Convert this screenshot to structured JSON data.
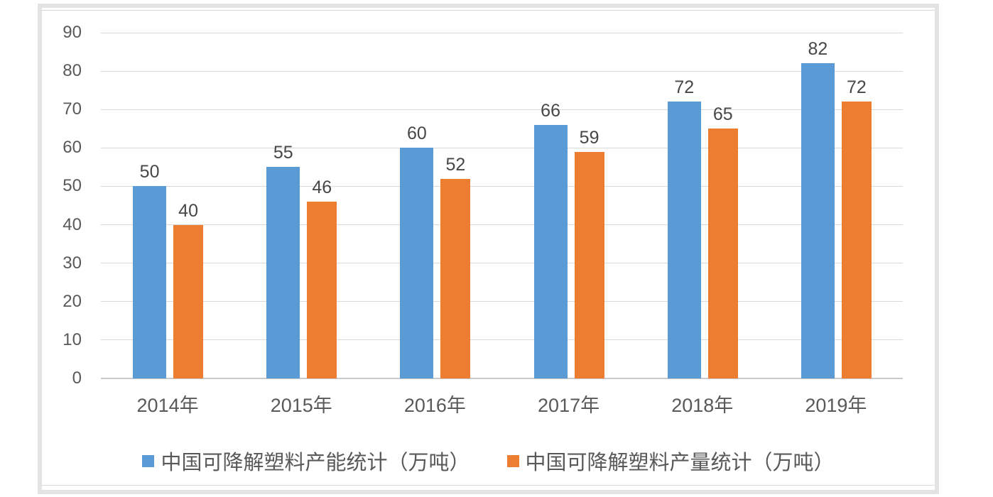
{
  "window": {
    "background": "#FFFFFF"
  },
  "chart_data": {
    "type": "bar",
    "title": "",
    "xlabel": "",
    "ylabel": "",
    "categories": [
      "2014年",
      "2015年",
      "2016年",
      "2017年",
      "2018年",
      "2019年"
    ],
    "series": [
      {
        "name": "中国可降解塑料产能统计（万吨）",
        "color": "#5B9BD5",
        "values": [
          50,
          55,
          60,
          66,
          72,
          82
        ]
      },
      {
        "name": "中国可降解塑料产量统计（万吨）",
        "color": "#ED7D31",
        "values": [
          40,
          46,
          52,
          59,
          65,
          72
        ]
      }
    ],
    "ylim": [
      0,
      90
    ],
    "yticks": [
      0,
      10,
      20,
      30,
      40,
      50,
      60,
      70,
      80,
      90
    ],
    "grid": true,
    "data_labels": true,
    "legend_position": "bottom"
  },
  "style_colors": {
    "gridline": "#D9D9D9",
    "axis_line": "#C9C9C9",
    "tick_label": "#595959",
    "data_label": "#474747",
    "frame_border": "#E3E3E3",
    "chart_border": "#D9D9D9"
  }
}
